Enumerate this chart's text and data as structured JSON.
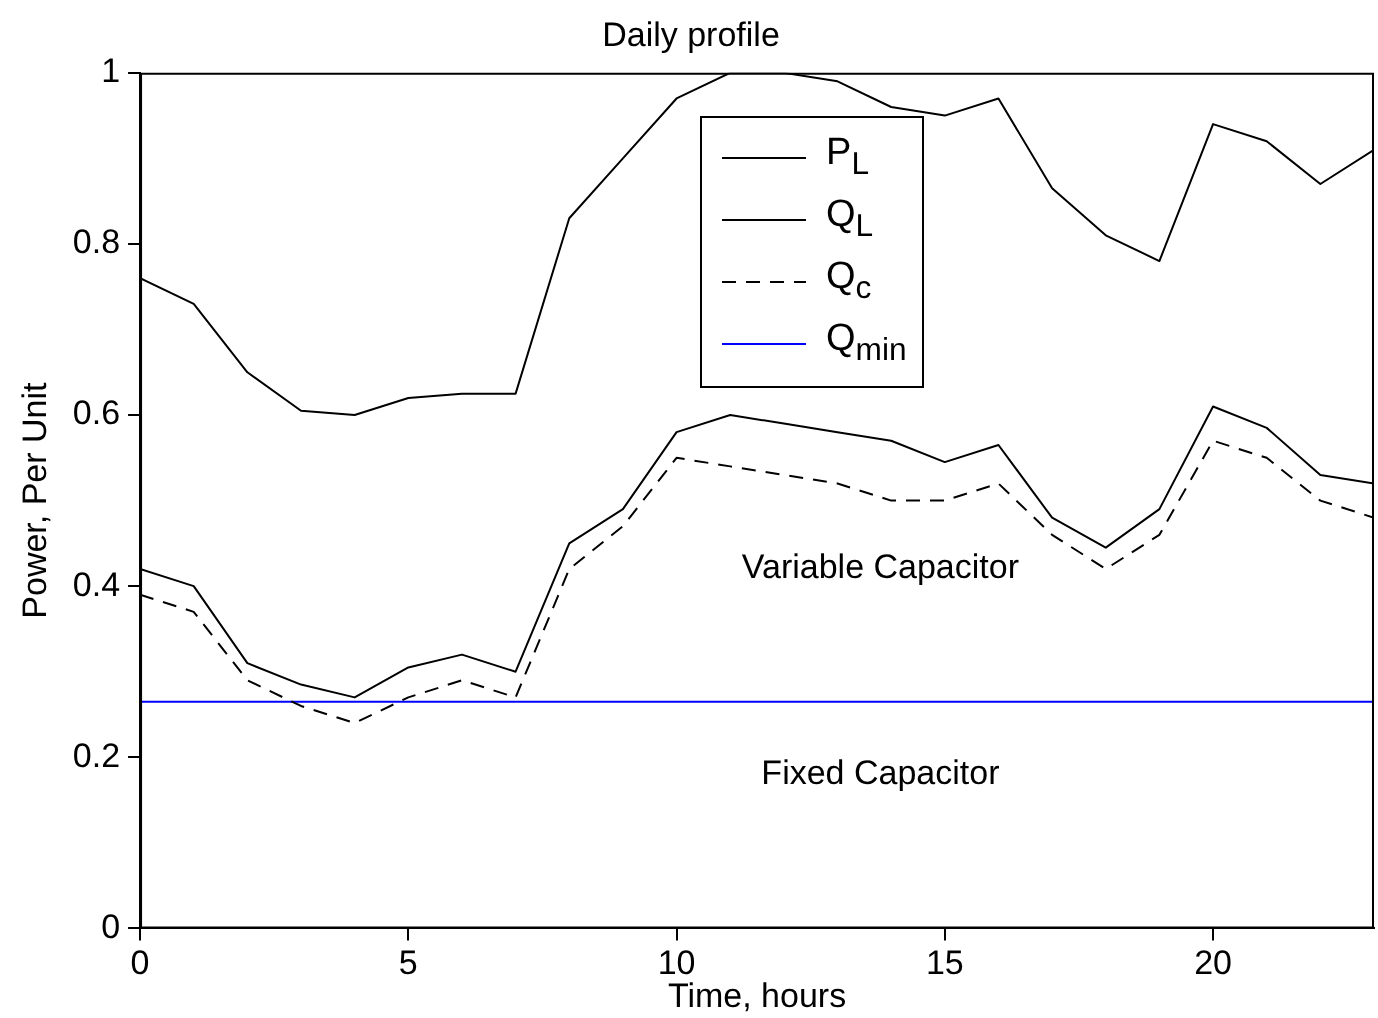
{
  "chart_data": {
    "type": "line",
    "title": "Daily profile",
    "xlabel": "Time, hours",
    "ylabel": "Power, Per Unit",
    "x": [
      0,
      1,
      2,
      3,
      4,
      5,
      6,
      7,
      8,
      9,
      10,
      11,
      12,
      13,
      14,
      15,
      16,
      17,
      18,
      19,
      20,
      21,
      22,
      23
    ],
    "series": [
      {
        "name": "P$_{L}$",
        "color": "#000000",
        "line_style": "solid",
        "values": [
          0.76,
          0.73,
          0.65,
          0.605,
          0.6,
          0.62,
          0.625,
          0.625,
          0.83,
          0.9,
          0.97,
          1.0,
          1.0,
          0.99,
          0.96,
          0.95,
          0.97,
          0.865,
          0.81,
          0.78,
          0.94,
          0.92,
          0.87,
          0.91
        ]
      },
      {
        "name": "Q$_{L}$",
        "color": "#000000",
        "line_style": "solid",
        "values": [
          0.42,
          0.4,
          0.31,
          0.285,
          0.27,
          0.305,
          0.32,
          0.3,
          0.45,
          0.49,
          0.58,
          0.6,
          0.59,
          0.58,
          0.57,
          0.545,
          0.565,
          0.48,
          0.445,
          0.49,
          0.61,
          0.585,
          0.53,
          0.52
        ]
      },
      {
        "name": "Q$_{c}$",
        "color": "#000000",
        "line_style": "dashed",
        "values": [
          0.39,
          0.37,
          0.29,
          0.26,
          0.24,
          0.27,
          0.29,
          0.27,
          0.42,
          0.47,
          0.55,
          0.54,
          0.53,
          0.52,
          0.5,
          0.5,
          0.52,
          0.46,
          0.42,
          0.46,
          0.57,
          0.55,
          0.5,
          0.48
        ]
      },
      {
        "name": "Q$_{min}$",
        "color": "#0000ff",
        "line_style": "solid",
        "values": [
          0.265,
          0.265,
          0.265,
          0.265,
          0.265,
          0.265,
          0.265,
          0.265,
          0.265,
          0.265,
          0.265,
          0.265,
          0.265,
          0.265,
          0.265,
          0.265,
          0.265,
          0.265,
          0.265,
          0.265,
          0.265,
          0.265,
          0.265,
          0.265
        ]
      }
    ],
    "xlim": [
      0,
      23
    ],
    "xticks": [
      0,
      5,
      10,
      15,
      20
    ],
    "ylim": [
      0,
      1
    ],
    "yticks": [
      0,
      0.2,
      0.4,
      0.6,
      0.8,
      1
    ],
    "annotations": [
      "Variable Capacitor",
      "Fixed Capacitor"
    ],
    "legend": "top",
    "grid": false,
    "marker": "none"
  }
}
